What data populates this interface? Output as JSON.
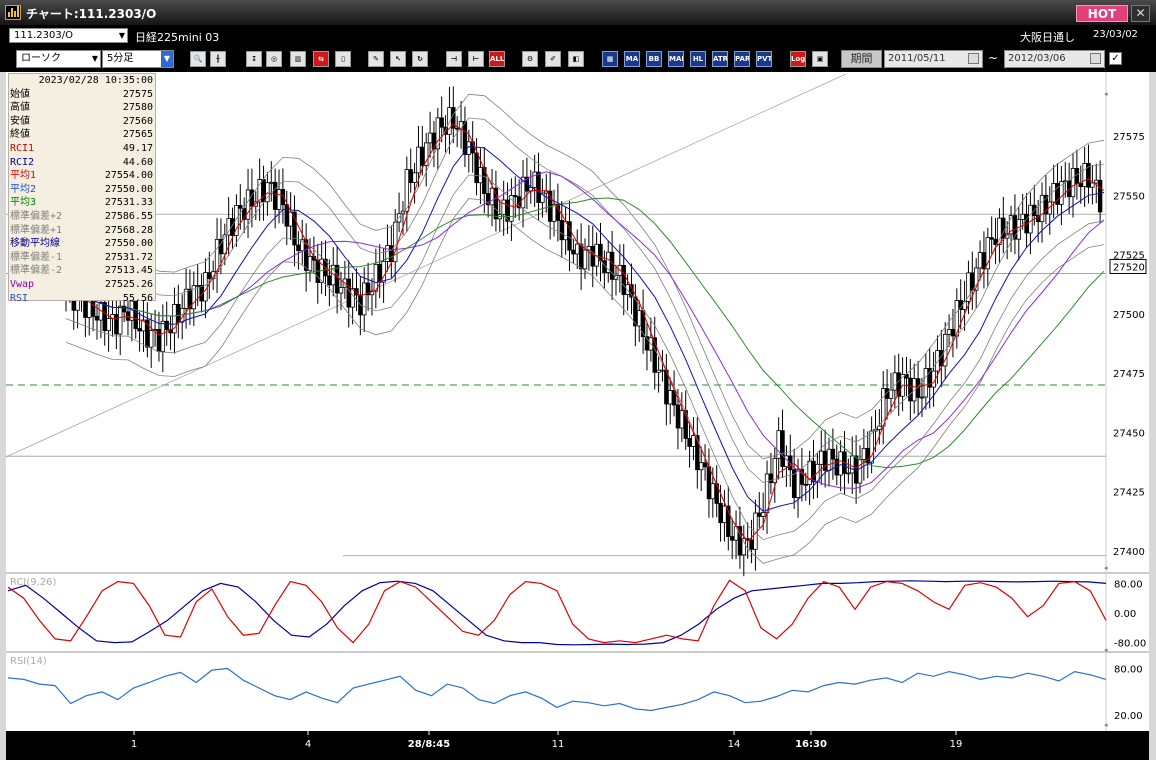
{
  "window": {
    "title": "チャート:111.2303/O",
    "hot_label": "HOT",
    "close_glyph": "✕"
  },
  "infobar": {
    "symbol": "111.2303/O",
    "product": "日経225mini 03",
    "session": "大阪日通し",
    "date": "23/03/02"
  },
  "toolbar": {
    "chart_type": "ローソク",
    "interval": "5分足",
    "buttons": [
      "zoom",
      "cursor",
      "draw",
      "magnify",
      "bars",
      "compare",
      "note",
      "pen",
      "select",
      "rotate",
      "tile",
      "tile-gap",
      "all",
      "settings",
      "edit",
      "palette",
      "multi",
      "MA",
      "BB",
      "MAE",
      "HL",
      "ATR",
      "PAR",
      "PVT",
      "Log",
      "window"
    ],
    "period_label": "期間",
    "date_from": "2011/05/11",
    "date_to": "2012/03/06",
    "tilde": "~",
    "checkbox_mark": "✓"
  },
  "info_panel": {
    "datetime": "2023/02/28  10:35:00",
    "rows": [
      {
        "label": "始値",
        "value": "27575",
        "color": "#000000"
      },
      {
        "label": "高値",
        "value": "27580",
        "color": "#000000"
      },
      {
        "label": "安値",
        "value": "27560",
        "color": "#000000"
      },
      {
        "label": "終値",
        "value": "27565",
        "color": "#000000"
      },
      {
        "label": "RCI1",
        "value": "49.17",
        "color": "#d00000"
      },
      {
        "label": "RCI2",
        "value": "44.60",
        "color": "#00008b"
      },
      {
        "label": "平均1",
        "value": "27554.00",
        "color": "#d00000"
      },
      {
        "label": "平均2",
        "value": "27550.00",
        "color": "#1e50d0"
      },
      {
        "label": "平均3",
        "value": "27531.33",
        "color": "#008000"
      },
      {
        "label": "標準偏差+2",
        "value": "27586.55",
        "color": "#808080"
      },
      {
        "label": "標準偏差+1",
        "value": "27568.28",
        "color": "#808080"
      },
      {
        "label": "移動平均線",
        "value": "27550.00",
        "color": "#00008b"
      },
      {
        "label": "標準偏差-1",
        "value": "27531.72",
        "color": "#808080"
      },
      {
        "label": "標準偏差-2",
        "value": "27513.45",
        "color": "#808080"
      },
      {
        "label": "Vwap",
        "value": "27525.26",
        "color": "#8000c0"
      },
      {
        "label": "RSI",
        "value": "55.56",
        "color": "#1e50d0"
      }
    ]
  },
  "colors": {
    "candle": "#000000",
    "ma1": "#e00000",
    "ma2": "#1010c0",
    "ma3": "#2e8b2e",
    "vwap": "#8a2be2",
    "band": "#808080",
    "rci_short": "#e00000",
    "rci_long": "#0000a0",
    "rsi": "#2a6fd6",
    "hline": "#2e8b2e"
  },
  "chart_data": {
    "type": "candlestick",
    "price_axis": {
      "ticks": [
        "27575",
        "27550",
        "27525",
        "27500",
        "27475",
        "27450",
        "27425",
        "27400"
      ],
      "range": [
        27392,
        27602
      ],
      "current_price": "27520",
      "dashed_level": 27470
    },
    "time_axis": {
      "ticks": [
        "1",
        "4",
        "28/8:45",
        "11",
        "14",
        "16:30",
        "19"
      ],
      "bold_ticks": [
        "28/8:45",
        "16:30"
      ]
    },
    "close_series": [
      27510,
      27505,
      27500,
      27496,
      27502,
      27492,
      27490,
      27498,
      27508,
      27512,
      27530,
      27542,
      27548,
      27554,
      27546,
      27528,
      27520,
      27516,
      27510,
      27505,
      27515,
      27528,
      27555,
      27568,
      27578,
      27582,
      27570,
      27552,
      27542,
      27548,
      27556,
      27548,
      27536,
      27524,
      27526,
      27520,
      27514,
      27496,
      27480,
      27464,
      27450,
      27436,
      27420,
      27406,
      27402,
      27420,
      27446,
      27428,
      27432,
      27440,
      27436,
      27434,
      27446,
      27468,
      27472,
      27466,
      27476,
      27492,
      27508,
      27522,
      27534,
      27536,
      27540,
      27544,
      27552,
      27556,
      27558,
      27546
    ],
    "rci_panel": {
      "label": "RCI(9,26)",
      "ticks": [
        "80.00",
        "0.00",
        "-80.00"
      ],
      "short": [
        70,
        40,
        -20,
        -70,
        -75,
        -10,
        60,
        85,
        80,
        20,
        -60,
        -65,
        30,
        65,
        -10,
        -60,
        -55,
        20,
        85,
        75,
        30,
        -40,
        -80,
        -30,
        60,
        85,
        70,
        30,
        -10,
        -50,
        -60,
        -20,
        50,
        85,
        80,
        60,
        -30,
        -70,
        -80,
        -75,
        -80,
        -70,
        -60,
        -70,
        -75,
        20,
        88,
        60,
        -40,
        -70,
        -30,
        40,
        85,
        70,
        10,
        70,
        85,
        80,
        60,
        30,
        10,
        75,
        82,
        70,
        40,
        -10,
        20,
        80,
        85,
        60,
        -20
      ],
      "long": [
        60,
        75,
        40,
        0,
        -40,
        -75,
        -80,
        -78,
        -50,
        -20,
        20,
        60,
        80,
        70,
        30,
        -20,
        -60,
        -65,
        -30,
        20,
        60,
        82,
        86,
        80,
        60,
        20,
        -20,
        -60,
        -75,
        -80,
        -80,
        -85,
        -86,
        -85,
        -84,
        -85,
        -84,
        -80,
        -60,
        -30,
        10,
        40,
        60,
        65,
        70,
        75,
        80,
        80,
        82,
        85,
        86,
        87,
        86,
        85,
        86,
        86,
        85,
        84,
        85,
        86,
        85,
        84,
        80
      ],
      "short_last": -20
    },
    "rsi_panel": {
      "label": "RSI(14)",
      "ticks": [
        "80.00",
        "20.00"
      ],
      "values": [
        68,
        66,
        60,
        58,
        35,
        45,
        50,
        40,
        55,
        62,
        70,
        75,
        62,
        78,
        80,
        65,
        55,
        45,
        40,
        50,
        42,
        36,
        55,
        60,
        65,
        70,
        52,
        45,
        60,
        55,
        40,
        35,
        45,
        50,
        42,
        30,
        38,
        36,
        32,
        35,
        28,
        26,
        30,
        34,
        40,
        50,
        45,
        36,
        38,
        44,
        52,
        50,
        58,
        62,
        60,
        65,
        68,
        62,
        74,
        70,
        76,
        72,
        66,
        70,
        68,
        74,
        70,
        64,
        76,
        72,
        66
      ]
    }
  }
}
